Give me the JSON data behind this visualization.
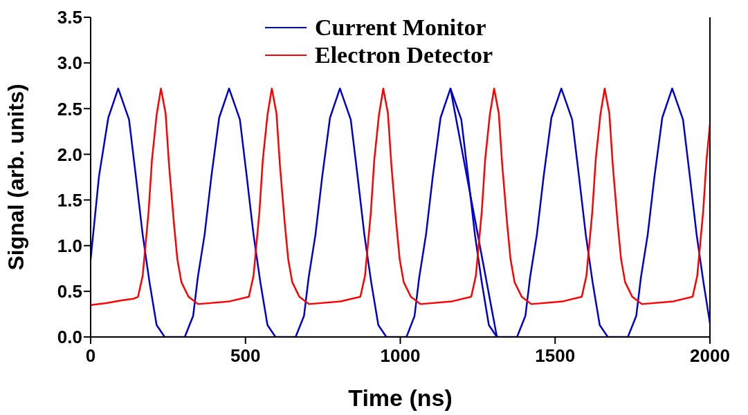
{
  "chart_data": {
    "type": "line",
    "xlabel": "Time (ns)",
    "ylabel": "Signal (arb. units)",
    "xlim": [
      0,
      2000
    ],
    "xticks": [
      0,
      500,
      1000,
      1500,
      2000
    ],
    "ylim": [
      0,
      3.5
    ],
    "yticks": [
      {
        "value": 0,
        "label": "0.0"
      },
      0.5,
      {
        "value": 1,
        "label": "1.0"
      },
      1.5,
      {
        "value": 2,
        "label": "2.0"
      },
      2.5,
      {
        "value": 3,
        "label": "3.0"
      },
      3.5
    ],
    "grid": false,
    "legend": "top",
    "marker": "none",
    "line_style": "solid",
    "series": [
      {
        "name": "Current Monitor",
        "color": "#0000cc",
        "x": [
          0,
          27,
          57,
          89,
          124,
          146,
          168,
          190,
          213,
          239,
          304,
          331,
          346,
          368,
          390,
          415,
          447,
          482,
          504,
          526,
          548,
          571,
          597,
          662,
          689,
          704,
          726,
          748,
          773,
          805,
          840,
          862,
          884,
          906,
          929,
          955,
          1020,
          1046,
          1061,
          1083,
          1105,
          1130,
          1162,
          1197,
          1219,
          1241,
          1263,
          1286,
          1312,
          1377,
          1404,
          1419,
          1441,
          1463,
          1488,
          1520,
          1555,
          1577,
          1599,
          1621,
          1644,
          1670,
          1735,
          1762,
          1777,
          1799,
          1821,
          1846,
          1878,
          1913,
          1935,
          1957,
          1979,
          2000
        ],
        "values": [
          0.85,
          1.76,
          2.4,
          2.72,
          2.38,
          1.76,
          1.12,
          0.6,
          0.13,
          0.0,
          0.0,
          0.23,
          0.65,
          1.12,
          1.76,
          2.4,
          2.72,
          2.38,
          1.76,
          1.12,
          0.6,
          0.13,
          0.0,
          0.0,
          0.23,
          0.65,
          1.12,
          1.76,
          2.4,
          2.72,
          2.38,
          1.76,
          1.12,
          0.6,
          0.13,
          0.0,
          0.0,
          0.23,
          0.65,
          1.12,
          1.76,
          2.4,
          2.72,
          2.38,
          1.76,
          1.12,
          0.6,
          0.13,
          0.0,
          0.0,
          0.23,
          0.65,
          1.12,
          1.76,
          2.4,
          2.72,
          2.38,
          1.76,
          1.12,
          0.6,
          0.13,
          0.0,
          0.0,
          0.23,
          0.65,
          1.12,
          1.76,
          2.4,
          2.72,
          2.38,
          1.76,
          1.12,
          0.6,
          0.15
        ]
      },
      {
        "color": "#0000cc",
        "x": [
          1162,
          1312
        ],
        "values": [
          2.72,
          0.0
        ]
      },
      {
        "name": "Electron Detector",
        "color": "#ff0000",
        "x": [
          0,
          50,
          100,
          140,
          153,
          168,
          187,
          198,
          213,
          227,
          242,
          253,
          269,
          280,
          293,
          316,
          347,
          449,
          511,
          526,
          545,
          556,
          571,
          585,
          600,
          611,
          627,
          638,
          651,
          674,
          705,
          807,
          871,
          886,
          905,
          916,
          931,
          945,
          960,
          971,
          987,
          998,
          1011,
          1034,
          1065,
          1167,
          1229,
          1244,
          1263,
          1274,
          1289,
          1303,
          1318,
          1329,
          1345,
          1356,
          1369,
          1392,
          1423,
          1525,
          1586,
          1601,
          1620,
          1631,
          1646,
          1660,
          1675,
          1686,
          1702,
          1713,
          1726,
          1749,
          1780,
          1882,
          1944,
          1959,
          1978,
          1989,
          2000
        ],
        "values": [
          0.35,
          0.37,
          0.4,
          0.42,
          0.44,
          0.67,
          1.37,
          1.94,
          2.43,
          2.72,
          2.45,
          1.89,
          1.24,
          0.85,
          0.6,
          0.44,
          0.36,
          0.39,
          0.44,
          0.67,
          1.37,
          1.94,
          2.43,
          2.72,
          2.45,
          1.89,
          1.24,
          0.85,
          0.6,
          0.44,
          0.36,
          0.39,
          0.44,
          0.67,
          1.37,
          1.94,
          2.43,
          2.72,
          2.45,
          1.89,
          1.24,
          0.85,
          0.6,
          0.44,
          0.36,
          0.39,
          0.44,
          0.67,
          1.37,
          1.94,
          2.43,
          2.72,
          2.45,
          1.89,
          1.24,
          0.85,
          0.6,
          0.44,
          0.36,
          0.39,
          0.44,
          0.67,
          1.37,
          1.94,
          2.43,
          2.72,
          2.45,
          1.89,
          1.24,
          0.85,
          0.6,
          0.44,
          0.36,
          0.39,
          0.44,
          0.67,
          1.37,
          1.94,
          2.33
        ]
      }
    ]
  }
}
